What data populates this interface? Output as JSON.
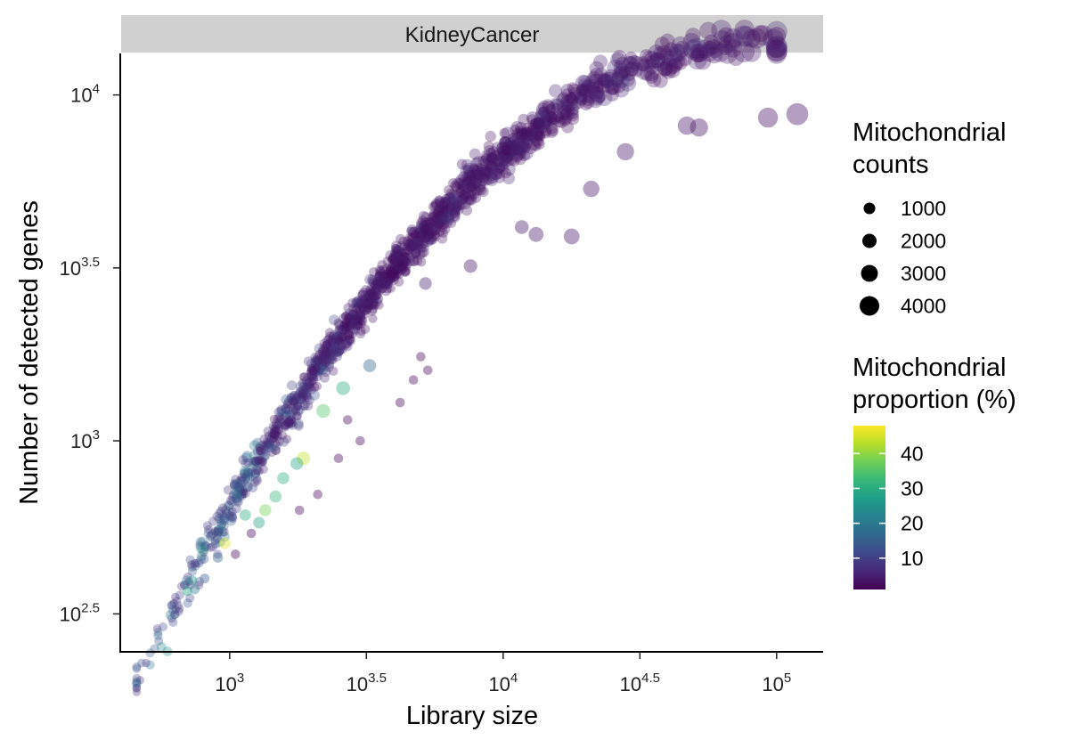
{
  "chart_data": {
    "type": "scatter",
    "panel_title": "KidneyCancer",
    "xlabel": "Library size",
    "ylabel": "Number of detected genes",
    "x_scale": "log10",
    "y_scale": "log10",
    "xlim_log10": [
      2.6,
      5.17
    ],
    "ylim_log10": [
      2.39,
      4.12
    ],
    "x_ticks": [
      {
        "base": "10",
        "exp": "3",
        "value": 1000
      },
      {
        "base": "10",
        "exp": "3.5",
        "value": 3162
      },
      {
        "base": "10",
        "exp": "4",
        "value": 10000
      },
      {
        "base": "10",
        "exp": "4.5",
        "value": 31623
      },
      {
        "base": "10",
        "exp": "5",
        "value": 100000
      }
    ],
    "y_ticks": [
      {
        "base": "10",
        "exp": "2.5",
        "value": 316
      },
      {
        "base": "10",
        "exp": "3",
        "value": 1000
      },
      {
        "base": "10",
        "exp": "3.5",
        "value": 3162
      },
      {
        "base": "10",
        "exp": "4",
        "value": 10000
      }
    ],
    "size_legend": {
      "title_lines": [
        "Mitochondrial",
        "counts"
      ],
      "values": [
        1000,
        2000,
        3000,
        4000
      ]
    },
    "color_legend": {
      "title_lines": [
        "Mitochondrial",
        "proportion (%)"
      ],
      "ticks": [
        10,
        20,
        30,
        40
      ],
      "range": [
        1,
        48
      ],
      "palette": [
        "#440154",
        "#482878",
        "#3e4989",
        "#31688e",
        "#26828e",
        "#1f9e89",
        "#35b779",
        "#6ece58",
        "#b5de2b",
        "#fde725"
      ]
    },
    "grid": false,
    "legend_position": "right",
    "point_opacity": 0.35,
    "highlighted_points": [
      {
        "x": 119000,
        "y": 8800,
        "mito_pct": 3,
        "mito_counts": 4300
      },
      {
        "x": 93000,
        "y": 8600,
        "mito_pct": 3,
        "mito_counts": 3200
      },
      {
        "x": 52000,
        "y": 8050,
        "mito_pct": 3,
        "mito_counts": 2400
      },
      {
        "x": 47000,
        "y": 8150,
        "mito_pct": 4,
        "mito_counts": 2500
      },
      {
        "x": 28000,
        "y": 6850,
        "mito_pct": 4,
        "mito_counts": 2000
      },
      {
        "x": 21000,
        "y": 5350,
        "mito_pct": 4,
        "mito_counts": 1700
      },
      {
        "x": 17800,
        "y": 3900,
        "mito_pct": 4,
        "mito_counts": 1500
      },
      {
        "x": 13200,
        "y": 3950,
        "mito_pct": 4,
        "mito_counts": 1200
      },
      {
        "x": 11700,
        "y": 4150,
        "mito_pct": 4,
        "mito_counts": 900
      },
      {
        "x": 7600,
        "y": 3200,
        "mito_pct": 4,
        "mito_counts": 800
      },
      {
        "x": 5200,
        "y": 2850,
        "mito_pct": 5,
        "mito_counts": 600
      },
      {
        "x": 3250,
        "y": 1650,
        "mito_pct": 16,
        "mito_counts": 700
      },
      {
        "x": 2600,
        "y": 1420,
        "mito_pct": 30,
        "mito_counts": 900
      },
      {
        "x": 2200,
        "y": 1220,
        "mito_pct": 35,
        "mito_counts": 900
      },
      {
        "x": 1860,
        "y": 890,
        "mito_pct": 44,
        "mito_counts": 800
      },
      {
        "x": 1760,
        "y": 860,
        "mito_pct": 28,
        "mito_counts": 600
      },
      {
        "x": 1570,
        "y": 780,
        "mito_pct": 30,
        "mito_counts": 500
      },
      {
        "x": 1470,
        "y": 690,
        "mito_pct": 32,
        "mito_counts": 500
      },
      {
        "x": 1350,
        "y": 630,
        "mito_pct": 38,
        "mito_counts": 500
      },
      {
        "x": 1280,
        "y": 580,
        "mito_pct": 28,
        "mito_counts": 400
      },
      {
        "x": 1140,
        "y": 610,
        "mito_pct": 30,
        "mito_counts": 350
      },
      {
        "x": 960,
        "y": 505,
        "mito_pct": 46,
        "mito_counts": 400
      },
      {
        "x": 905,
        "y": 460,
        "mito_pct": 16,
        "mito_counts": 200
      },
      {
        "x": 810,
        "y": 400,
        "mito_pct": 14,
        "mito_counts": 150
      },
      {
        "x": 730,
        "y": 395,
        "mito_pct": 25,
        "mito_counts": 150
      },
      {
        "x": 700,
        "y": 368,
        "mito_pct": 28,
        "mito_counts": 150
      },
      {
        "x": 745,
        "y": 372,
        "mito_pct": 20,
        "mito_counts": 150
      },
      {
        "x": 2700,
        "y": 1150,
        "mito_pct": 2,
        "mito_counts": 100
      },
      {
        "x": 3000,
        "y": 1000,
        "mito_pct": 2,
        "mito_counts": 100
      },
      {
        "x": 5300,
        "y": 1600,
        "mito_pct": 2,
        "mito_counts": 100
      },
      {
        "x": 4700,
        "y": 1500,
        "mito_pct": 2,
        "mito_counts": 100
      },
      {
        "x": 4200,
        "y": 1290,
        "mito_pct": 2,
        "mito_counts": 100
      },
      {
        "x": 5000,
        "y": 1750,
        "mito_pct": 2,
        "mito_counts": 100
      },
      {
        "x": 2100,
        "y": 700,
        "mito_pct": 2,
        "mito_counts": 100
      },
      {
        "x": 1800,
        "y": 630,
        "mito_pct": 2,
        "mito_counts": 100
      },
      {
        "x": 2500,
        "y": 890,
        "mito_pct": 2,
        "mito_counts": 100
      },
      {
        "x": 1200,
        "y": 540,
        "mito_pct": 2,
        "mito_counts": 100
      },
      {
        "x": 1050,
        "y": 470,
        "mito_pct": 2,
        "mito_counts": 100
      }
    ]
  }
}
